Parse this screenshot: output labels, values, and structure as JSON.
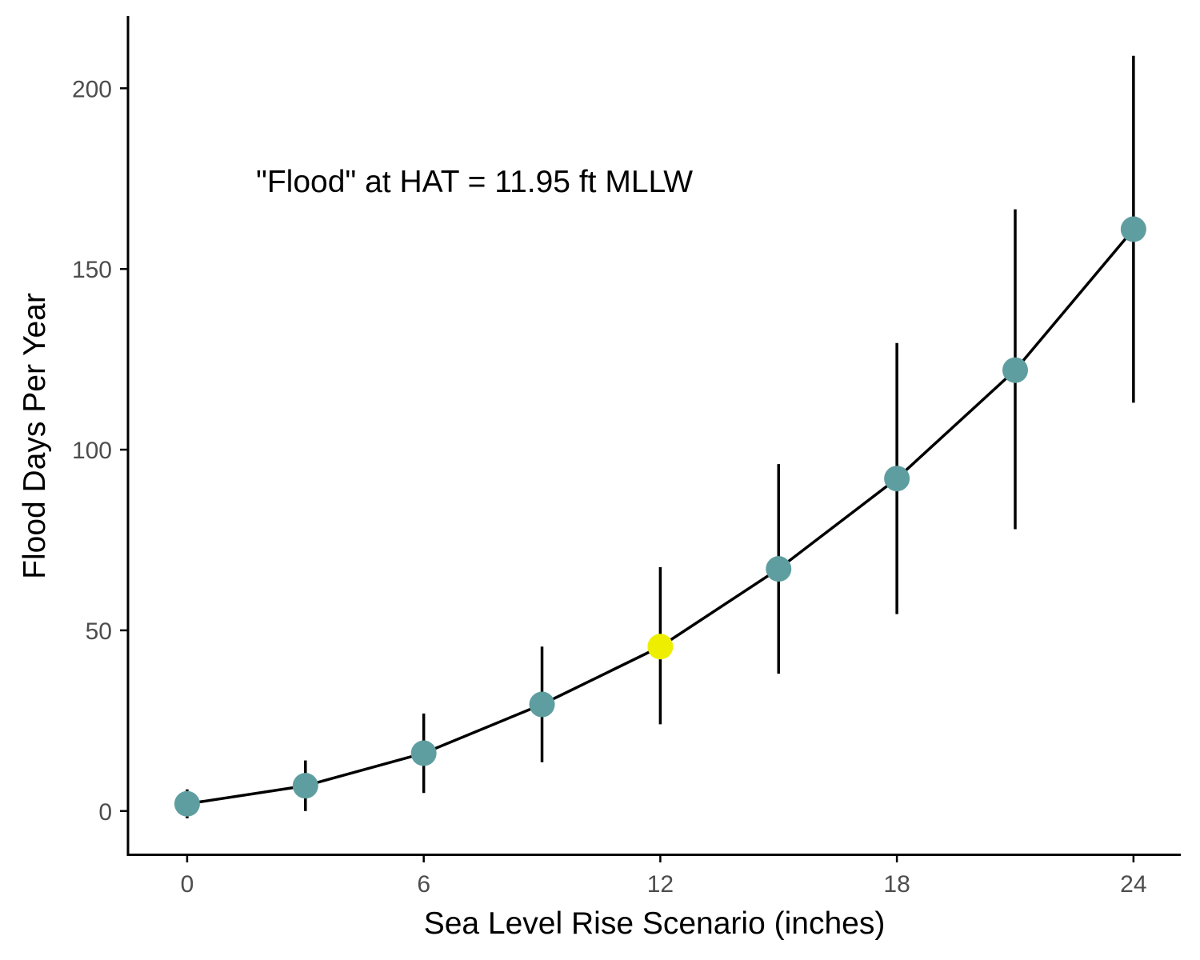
{
  "chart_data": {
    "type": "line",
    "annotation": "\"Flood\" at HAT = 11.95 ft MLLW",
    "xlabel": "Sea Level Rise Scenario (inches)",
    "ylabel": "Flood Days Per Year",
    "xlim": [
      -1.5,
      25.2
    ],
    "ylim": [
      -12,
      220
    ],
    "x_ticks": [
      0,
      6,
      12,
      18,
      24
    ],
    "y_ticks": [
      0,
      50,
      100,
      150,
      200
    ],
    "grid": false,
    "legend": "none",
    "colors": {
      "point": "#5f9ea0",
      "highlight": "#eeee00",
      "line": "#000000"
    },
    "highlight_x": 12,
    "points": [
      {
        "x": 0,
        "y": 2,
        "ymin": -2,
        "ymax": 6
      },
      {
        "x": 3,
        "y": 7,
        "ymin": 0,
        "ymax": 14
      },
      {
        "x": 6,
        "y": 16,
        "ymin": 5,
        "ymax": 27
      },
      {
        "x": 9,
        "y": 29.5,
        "ymin": 13.5,
        "ymax": 45.5
      },
      {
        "x": 12,
        "y": 45.5,
        "ymin": 24,
        "ymax": 67.5
      },
      {
        "x": 15,
        "y": 67,
        "ymin": 38,
        "ymax": 96
      },
      {
        "x": 18,
        "y": 92,
        "ymin": 54.5,
        "ymax": 129.5
      },
      {
        "x": 21,
        "y": 122,
        "ymin": 78,
        "ymax": 166.5
      },
      {
        "x": 24,
        "y": 161,
        "ymin": 113,
        "ymax": 209
      }
    ]
  }
}
